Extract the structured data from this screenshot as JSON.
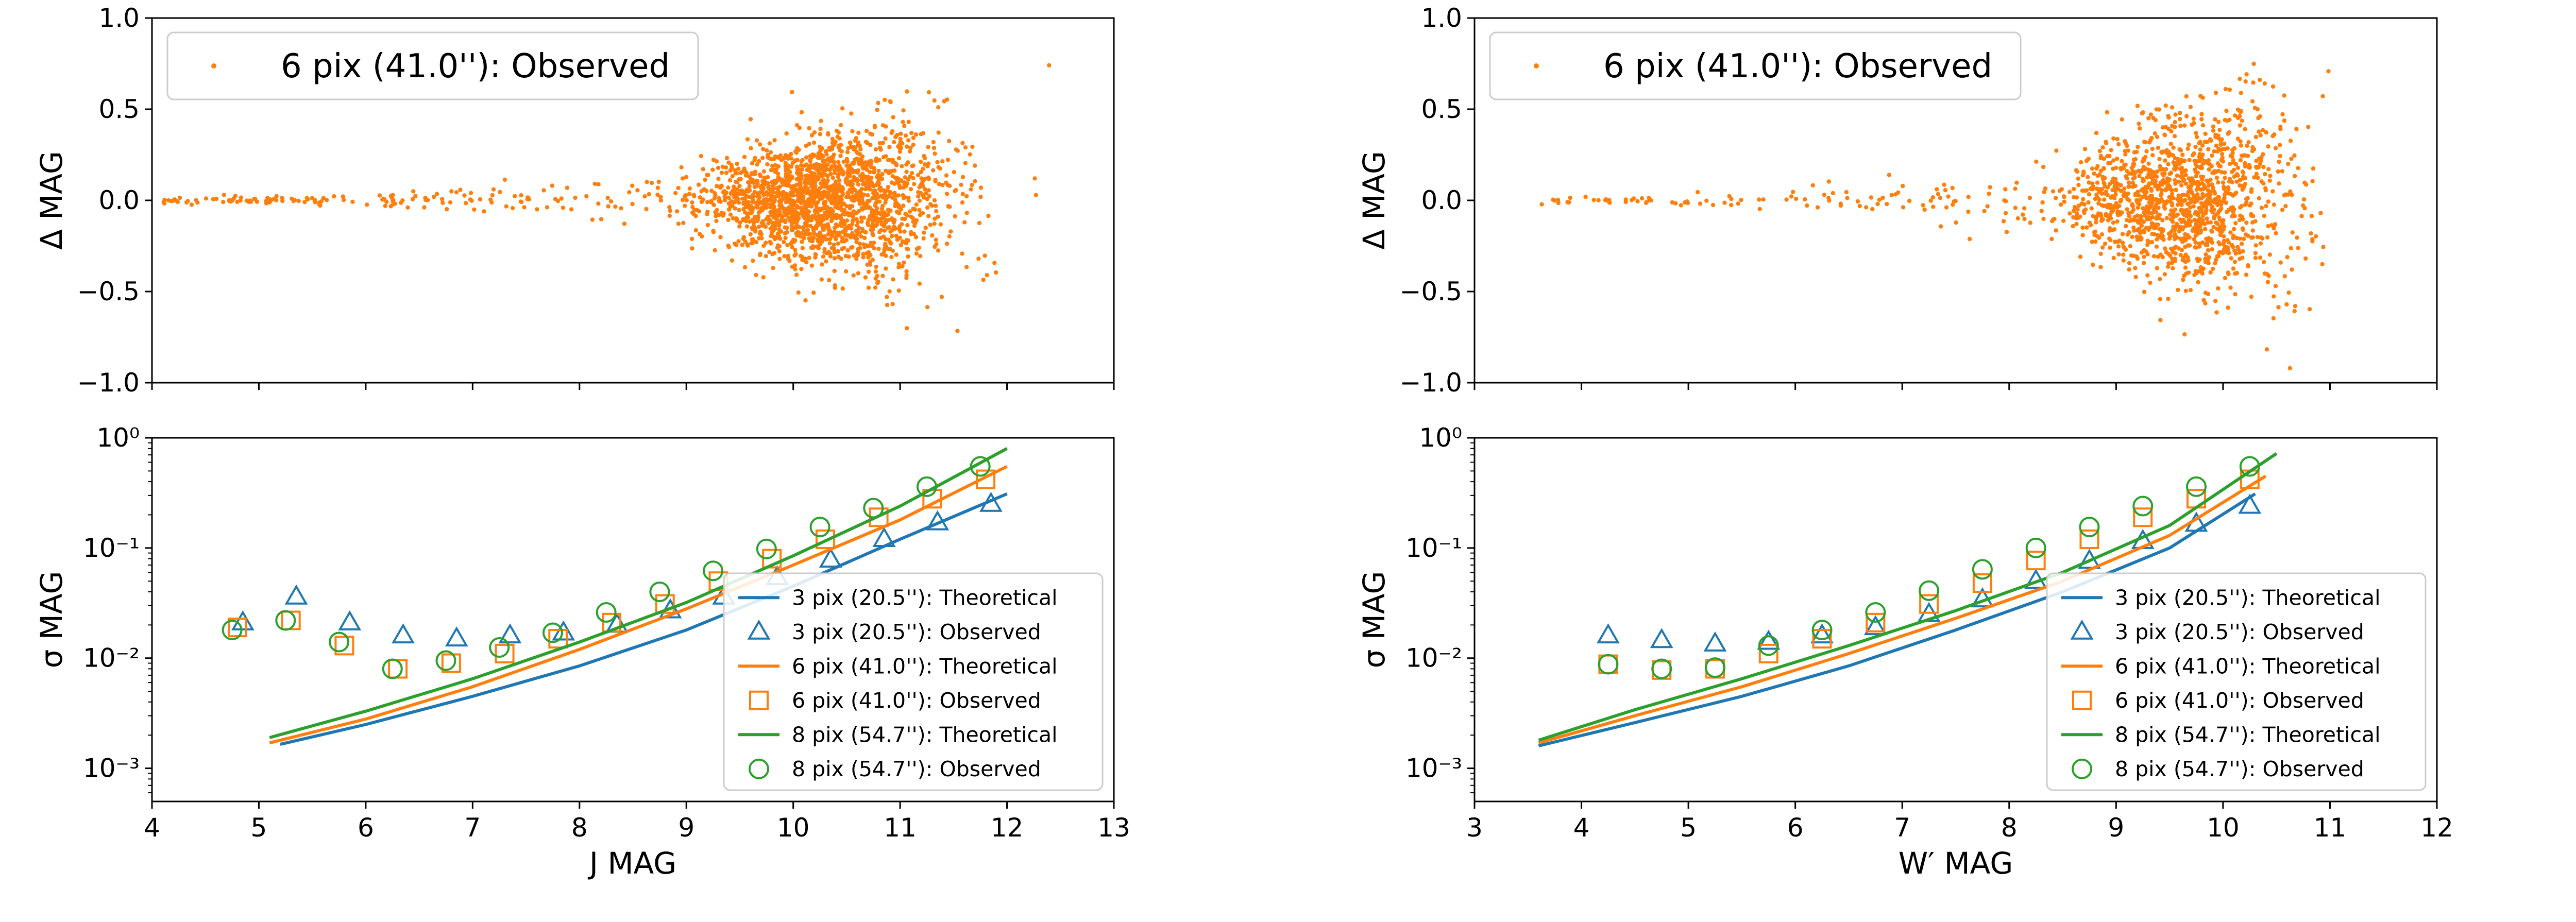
{
  "colors": {
    "blue": "#1f77b4",
    "orange": "#ff7f0e",
    "green": "#2ca02c"
  },
  "chart_data": [
    {
      "id": "left-top",
      "type": "scatter",
      "xlim": [
        4,
        13
      ],
      "ylim": [
        -1.0,
        1.0
      ],
      "ylabel": "Δ MAG",
      "yticks": [
        -1.0,
        -0.5,
        0.0,
        0.5,
        1.0
      ],
      "ytick_labels": [
        "−1.0",
        "−0.5",
        "0.0",
        "0.5",
        "1.0"
      ],
      "xticks": [
        4,
        5,
        6,
        7,
        8,
        9,
        10,
        11,
        12,
        13
      ],
      "legend": {
        "label": "6 pix (41.0''): Observed",
        "position": "top-left"
      },
      "series": [
        {
          "name": "6 pix (41.0''): Observed",
          "color": "orange",
          "scatter": {
            "x_range": [
              4.1,
              12.5
            ],
            "x_peak": 10.3,
            "spread_at_bright": 0.01,
            "spread_at_faint": 0.38,
            "count": 2200
          }
        }
      ]
    },
    {
      "id": "left-bottom",
      "type": "line",
      "xlim": [
        4,
        13
      ],
      "yscale": "log",
      "ylim": [
        0.0005,
        1.0
      ],
      "xlabel": "J MAG",
      "ylabel": "σ MAG",
      "xticks": [
        4,
        5,
        6,
        7,
        8,
        9,
        10,
        11,
        12,
        13
      ],
      "xtick_labels": [
        "4",
        "5",
        "6",
        "7",
        "8",
        "9",
        "10",
        "11",
        "12",
        "13"
      ],
      "yticks": [
        0.001,
        0.01,
        0.1,
        1.0
      ],
      "ytick_labels": [
        "10⁻³",
        "10⁻²",
        "10⁻¹",
        "10⁰"
      ],
      "legend_position": "bottom-right",
      "series": [
        {
          "name": "3 pix (20.5''): Theoretical",
          "kind": "line",
          "color": "blue",
          "x": [
            5.2,
            6,
            7,
            8,
            9,
            10,
            11,
            12
          ],
          "y": [
            0.00165,
            0.0025,
            0.0045,
            0.0085,
            0.018,
            0.045,
            0.12,
            0.31
          ]
        },
        {
          "name": "3 pix (20.5''): Observed",
          "kind": "marker",
          "marker": "triangle",
          "color": "blue",
          "x": [
            4.85,
            5.35,
            5.85,
            6.35,
            6.85,
            7.35,
            7.85,
            8.35,
            8.85,
            9.35,
            9.85,
            10.35,
            10.85,
            11.35,
            11.85
          ],
          "y": [
            0.021,
            0.036,
            0.021,
            0.016,
            0.015,
            0.016,
            0.017,
            0.02,
            0.027,
            0.036,
            0.054,
            0.078,
            0.12,
            0.17,
            0.25
          ]
        },
        {
          "name": "6 pix (41.0''): Theoretical",
          "kind": "line",
          "color": "orange",
          "x": [
            5.1,
            6,
            7,
            8,
            9,
            10,
            11,
            12
          ],
          "y": [
            0.0017,
            0.0028,
            0.0055,
            0.012,
            0.028,
            0.07,
            0.18,
            0.55
          ]
        },
        {
          "name": "6 pix (41.0''): Observed",
          "kind": "marker",
          "marker": "square",
          "color": "orange",
          "x": [
            4.8,
            5.3,
            5.8,
            6.3,
            6.8,
            7.3,
            7.8,
            8.3,
            8.8,
            9.3,
            9.8,
            10.3,
            10.8,
            11.3,
            11.8
          ],
          "y": [
            0.019,
            0.022,
            0.013,
            0.008,
            0.009,
            0.011,
            0.015,
            0.021,
            0.031,
            0.05,
            0.08,
            0.12,
            0.19,
            0.28,
            0.42
          ]
        },
        {
          "name": "8 pix (54.7''): Theoretical",
          "kind": "line",
          "color": "green",
          "x": [
            5.1,
            6,
            7,
            8,
            9,
            10,
            11,
            12
          ],
          "y": [
            0.0019,
            0.0033,
            0.0065,
            0.014,
            0.032,
            0.085,
            0.24,
            0.8
          ]
        },
        {
          "name": "8 pix (54.7''): Observed",
          "kind": "marker",
          "marker": "circle",
          "color": "green",
          "x": [
            4.75,
            5.25,
            5.75,
            6.25,
            6.75,
            7.25,
            7.75,
            8.25,
            8.75,
            9.25,
            9.75,
            10.25,
            10.75,
            11.25,
            11.75
          ],
          "y": [
            0.018,
            0.022,
            0.014,
            0.008,
            0.0095,
            0.0125,
            0.017,
            0.026,
            0.04,
            0.062,
            0.098,
            0.155,
            0.23,
            0.36,
            0.55
          ]
        }
      ]
    },
    {
      "id": "right-top",
      "type": "scatter",
      "xlim": [
        3,
        12
      ],
      "ylim": [
        -1.0,
        1.0
      ],
      "ylabel": "Δ MAG",
      "yticks": [
        -1.0,
        -0.5,
        0.0,
        0.5,
        1.0
      ],
      "ytick_labels": [
        "−1.0",
        "−0.5",
        "0.0",
        "0.5",
        "1.0"
      ],
      "xticks": [
        3,
        4,
        5,
        6,
        7,
        8,
        9,
        10,
        11,
        12
      ],
      "legend": {
        "label": "6 pix (41.0''): Observed",
        "position": "top-left"
      },
      "series": [
        {
          "name": "6 pix (41.0''): Observed",
          "color": "orange",
          "scatter": {
            "x_range": [
              3.55,
              11.0
            ],
            "x_peak": 9.6,
            "spread_at_bright": 0.01,
            "spread_at_faint": 0.36,
            "count": 1500
          }
        }
      ]
    },
    {
      "id": "right-bottom",
      "type": "line",
      "xlim": [
        3,
        12
      ],
      "yscale": "log",
      "ylim": [
        0.0005,
        1.0
      ],
      "xlabel": "W′ MAG",
      "ylabel": "σ MAG",
      "xticks": [
        3,
        4,
        5,
        6,
        7,
        8,
        9,
        10,
        11,
        12
      ],
      "xtick_labels": [
        "3",
        "4",
        "5",
        "6",
        "7",
        "8",
        "9",
        "10",
        "11",
        "12"
      ],
      "yticks": [
        0.001,
        0.01,
        0.1,
        1.0
      ],
      "ytick_labels": [
        "10⁻³",
        "10⁻²",
        "10⁻¹",
        "10⁰"
      ],
      "legend_position": "bottom-right",
      "series": [
        {
          "name": "3 pix (20.5''): Theoretical",
          "kind": "line",
          "color": "blue",
          "x": [
            3.6,
            4.5,
            5.5,
            6.5,
            7.5,
            8.5,
            9.5,
            10.3
          ],
          "y": [
            0.0016,
            0.0026,
            0.0045,
            0.0085,
            0.018,
            0.04,
            0.1,
            0.31
          ]
        },
        {
          "name": "3 pix (20.5''): Observed",
          "kind": "marker",
          "marker": "triangle",
          "color": "blue",
          "x": [
            4.25,
            4.75,
            5.25,
            5.75,
            6.25,
            6.75,
            7.25,
            7.75,
            8.25,
            8.75,
            9.25,
            9.75,
            10.25
          ],
          "y": [
            0.016,
            0.0145,
            0.0135,
            0.014,
            0.016,
            0.019,
            0.025,
            0.034,
            0.05,
            0.076,
            0.115,
            0.165,
            0.24
          ]
        },
        {
          "name": "6 pix (41.0''): Theoretical",
          "kind": "line",
          "color": "orange",
          "x": [
            3.6,
            4.5,
            5.5,
            6.5,
            7.5,
            8.5,
            9.5,
            10.4
          ],
          "y": [
            0.0017,
            0.003,
            0.0055,
            0.011,
            0.023,
            0.05,
            0.13,
            0.45
          ]
        },
        {
          "name": "6 pix (41.0''): Observed",
          "kind": "marker",
          "marker": "square",
          "color": "orange",
          "x": [
            4.25,
            4.75,
            5.25,
            5.75,
            6.25,
            6.75,
            7.25,
            7.75,
            8.25,
            8.75,
            9.25,
            9.75,
            10.25
          ],
          "y": [
            0.0088,
            0.0078,
            0.008,
            0.011,
            0.015,
            0.021,
            0.031,
            0.048,
            0.077,
            0.12,
            0.19,
            0.28,
            0.42
          ]
        },
        {
          "name": "8 pix (54.7''): Theoretical",
          "kind": "line",
          "color": "green",
          "x": [
            3.6,
            4.5,
            5.5,
            6.5,
            7.5,
            8.5,
            9.5,
            10.5
          ],
          "y": [
            0.0018,
            0.0034,
            0.0065,
            0.013,
            0.027,
            0.06,
            0.16,
            0.72
          ]
        },
        {
          "name": "8 pix (54.7''): Observed",
          "kind": "marker",
          "marker": "circle",
          "color": "green",
          "x": [
            4.25,
            4.75,
            5.25,
            5.75,
            6.25,
            6.75,
            7.25,
            7.75,
            8.25,
            8.75,
            9.25,
            9.75,
            10.25
          ],
          "y": [
            0.0088,
            0.008,
            0.0082,
            0.013,
            0.018,
            0.026,
            0.041,
            0.064,
            0.1,
            0.155,
            0.24,
            0.36,
            0.55
          ]
        }
      ]
    }
  ]
}
